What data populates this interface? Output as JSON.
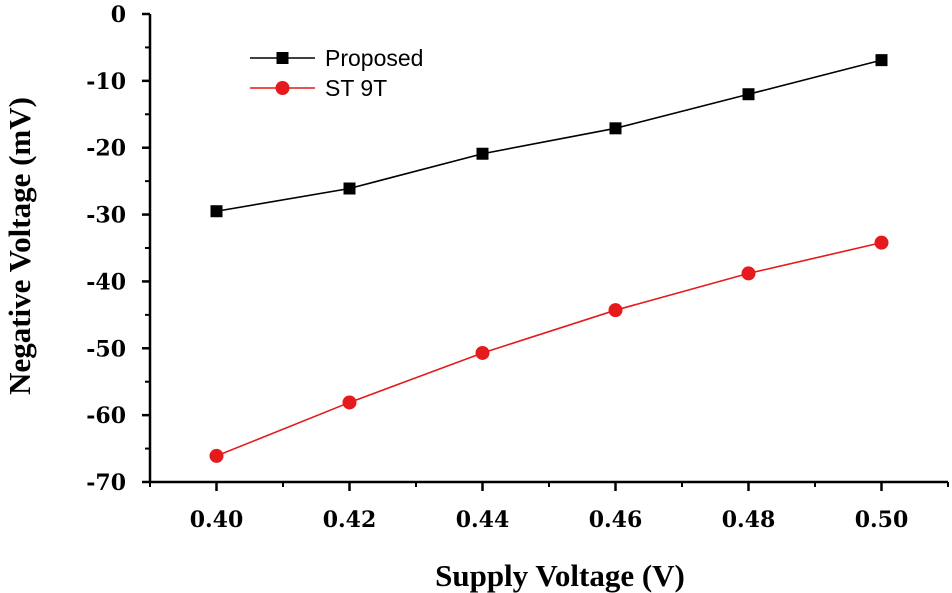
{
  "chart_data": {
    "type": "line",
    "title": "",
    "xlabel": "Supply Voltage (V)",
    "ylabel": "Negative Voltage (mV)",
    "xlim": [
      0.39,
      0.51
    ],
    "ylim": [
      -70,
      0
    ],
    "x_ticks": [
      0.4,
      0.42,
      0.44,
      0.46,
      0.48,
      0.5
    ],
    "x_tick_labels": [
      "0.40",
      "0.42",
      "0.44",
      "0.46",
      "0.48",
      "0.50"
    ],
    "y_ticks": [
      0,
      -10,
      -20,
      -30,
      -40,
      -50,
      -60,
      -70
    ],
    "y_tick_labels": [
      "0",
      "-10",
      "-20",
      "-30",
      "-40",
      "-50",
      "-60",
      "-70"
    ],
    "grid": false,
    "legend_position": "top-left",
    "x": [
      0.4,
      0.42,
      0.44,
      0.46,
      0.48,
      0.5
    ],
    "series": [
      {
        "name": "Proposed",
        "color": "#000000",
        "marker": "square",
        "values": [
          -29.5,
          -26.1,
          -20.9,
          -17.1,
          -12.0,
          -6.9
        ]
      },
      {
        "name": "ST 9T",
        "color": "#e41a1c",
        "marker": "circle",
        "values": [
          -66.1,
          -58.1,
          -50.7,
          -44.3,
          -38.8,
          -34.2
        ]
      }
    ]
  }
}
